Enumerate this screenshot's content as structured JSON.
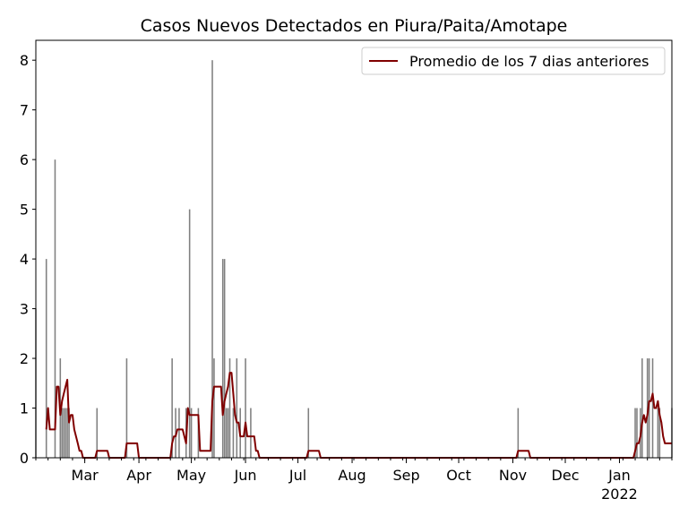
{
  "chart_data": {
    "type": "bar",
    "title": "Casos Nuevos Detectados en Piura/Paita/Amotape",
    "xlabel": "",
    "ylabel": "",
    "x_range": [
      "2021-02-01",
      "2022-01-31"
    ],
    "ylim": [
      0,
      8.4
    ],
    "yticks": [
      0,
      1,
      2,
      3,
      4,
      5,
      6,
      7,
      8
    ],
    "xticks": [
      {
        "date": "2021-03-01",
        "label": "Mar"
      },
      {
        "date": "2021-04-01",
        "label": "Apr"
      },
      {
        "date": "2021-05-01",
        "label": "May"
      },
      {
        "date": "2021-06-01",
        "label": "Jun"
      },
      {
        "date": "2021-07-01",
        "label": "Jul"
      },
      {
        "date": "2021-08-01",
        "label": "Aug"
      },
      {
        "date": "2021-09-01",
        "label": "Sep"
      },
      {
        "date": "2021-10-01",
        "label": "Oct"
      },
      {
        "date": "2021-11-01",
        "label": "Nov"
      },
      {
        "date": "2021-12-01",
        "label": "Dec"
      },
      {
        "date": "2022-01-01",
        "label": "Jan",
        "sublabel": "2022"
      }
    ],
    "grid": false,
    "legend_position": "top-right",
    "colors": {
      "bars": "#808080",
      "line": "#800000"
    },
    "bars": {
      "name": "",
      "points": [
        [
          "2021-02-01",
          3
        ],
        [
          "2021-02-07",
          4
        ],
        [
          "2021-02-12",
          6
        ],
        [
          "2021-02-15",
          2
        ],
        [
          "2021-02-16",
          1
        ],
        [
          "2021-02-17",
          1
        ],
        [
          "2021-02-18",
          1
        ],
        [
          "2021-02-19",
          1
        ],
        [
          "2021-02-20",
          1
        ],
        [
          "2021-03-08",
          1
        ],
        [
          "2021-03-25",
          2
        ],
        [
          "2021-04-20",
          2
        ],
        [
          "2021-04-22",
          1
        ],
        [
          "2021-04-24",
          1
        ],
        [
          "2021-04-28",
          1
        ],
        [
          "2021-04-30",
          5
        ],
        [
          "2021-05-01",
          1
        ],
        [
          "2021-05-05",
          1
        ],
        [
          "2021-05-13",
          8
        ],
        [
          "2021-05-14",
          2
        ],
        [
          "2021-05-19",
          4
        ],
        [
          "2021-05-20",
          4
        ],
        [
          "2021-05-21",
          1
        ],
        [
          "2021-05-22",
          1
        ],
        [
          "2021-05-23",
          2
        ],
        [
          "2021-05-25",
          1
        ],
        [
          "2021-05-27",
          2
        ],
        [
          "2021-05-29",
          1
        ],
        [
          "2021-06-01",
          2
        ],
        [
          "2021-06-04",
          1
        ],
        [
          "2021-07-07",
          1
        ],
        [
          "2021-11-04",
          1
        ],
        [
          "2022-01-10",
          1
        ],
        [
          "2022-01-11",
          1
        ],
        [
          "2022-01-13",
          1
        ],
        [
          "2022-01-14",
          2
        ],
        [
          "2022-01-17",
          2
        ],
        [
          "2022-01-18",
          2
        ],
        [
          "2022-01-20",
          2
        ],
        [
          "2022-01-23",
          1
        ],
        [
          "2022-01-24",
          1
        ],
        [
          "2022-01-31",
          1
        ]
      ]
    },
    "series": [
      {
        "name": "Promedio de los 7 dias anteriores",
        "points": [
          [
            "2021-02-07",
            0.57
          ],
          [
            "2021-02-08",
            1.0
          ],
          [
            "2021-02-09",
            0.57
          ],
          [
            "2021-02-10",
            0.57
          ],
          [
            "2021-02-11",
            0.57
          ],
          [
            "2021-02-12",
            0.57
          ],
          [
            "2021-02-13",
            1.43
          ],
          [
            "2021-02-14",
            1.43
          ],
          [
            "2021-02-15",
            0.86
          ],
          [
            "2021-02-16",
            1.14
          ],
          [
            "2021-02-17",
            1.29
          ],
          [
            "2021-02-18",
            1.43
          ],
          [
            "2021-02-19",
            1.57
          ],
          [
            "2021-02-20",
            0.71
          ],
          [
            "2021-02-21",
            0.86
          ],
          [
            "2021-02-22",
            0.86
          ],
          [
            "2021-02-23",
            0.57
          ],
          [
            "2021-02-24",
            0.43
          ],
          [
            "2021-02-25",
            0.29
          ],
          [
            "2021-02-26",
            0.14
          ],
          [
            "2021-02-27",
            0.14
          ],
          [
            "2021-02-28",
            0.0
          ],
          [
            "2021-03-01",
            0.0
          ],
          [
            "2021-03-07",
            0.0
          ],
          [
            "2021-03-08",
            0.14
          ],
          [
            "2021-03-14",
            0.14
          ],
          [
            "2021-03-15",
            0.0
          ],
          [
            "2021-03-24",
            0.0
          ],
          [
            "2021-03-25",
            0.29
          ],
          [
            "2021-03-31",
            0.29
          ],
          [
            "2021-04-01",
            0.0
          ],
          [
            "2021-04-19",
            0.0
          ],
          [
            "2021-04-20",
            0.29
          ],
          [
            "2021-04-21",
            0.43
          ],
          [
            "2021-04-22",
            0.43
          ],
          [
            "2021-04-23",
            0.57
          ],
          [
            "2021-04-26",
            0.57
          ],
          [
            "2021-04-27",
            0.43
          ],
          [
            "2021-04-28",
            0.29
          ],
          [
            "2021-04-29",
            1.0
          ],
          [
            "2021-04-30",
            0.86
          ],
          [
            "2021-05-05",
            0.86
          ],
          [
            "2021-05-06",
            0.14
          ],
          [
            "2021-05-11",
            0.14
          ],
          [
            "2021-05-12",
            0.14
          ],
          [
            "2021-05-13",
            1.14
          ],
          [
            "2021-05-14",
            1.43
          ],
          [
            "2021-05-18",
            1.43
          ],
          [
            "2021-05-19",
            0.86
          ],
          [
            "2021-05-20",
            1.14
          ],
          [
            "2021-05-21",
            1.29
          ],
          [
            "2021-05-22",
            1.43
          ],
          [
            "2021-05-23",
            1.71
          ],
          [
            "2021-05-24",
            1.71
          ],
          [
            "2021-05-25",
            1.29
          ],
          [
            "2021-05-26",
            0.86
          ],
          [
            "2021-05-27",
            0.71
          ],
          [
            "2021-05-28",
            0.71
          ],
          [
            "2021-05-29",
            0.43
          ],
          [
            "2021-05-30",
            0.43
          ],
          [
            "2021-05-31",
            0.43
          ],
          [
            "2021-06-01",
            0.71
          ],
          [
            "2021-06-02",
            0.43
          ],
          [
            "2021-06-06",
            0.43
          ],
          [
            "2021-06-07",
            0.14
          ],
          [
            "2021-06-08",
            0.14
          ],
          [
            "2021-06-09",
            0.0
          ],
          [
            "2021-07-06",
            0.0
          ],
          [
            "2021-07-07",
            0.14
          ],
          [
            "2021-07-13",
            0.14
          ],
          [
            "2021-07-14",
            0.0
          ],
          [
            "2021-11-03",
            0.0
          ],
          [
            "2021-11-04",
            0.14
          ],
          [
            "2021-11-10",
            0.14
          ],
          [
            "2021-11-11",
            0.0
          ],
          [
            "2022-01-09",
            0.0
          ],
          [
            "2022-01-10",
            0.14
          ],
          [
            "2022-01-11",
            0.29
          ],
          [
            "2022-01-12",
            0.29
          ],
          [
            "2022-01-13",
            0.43
          ],
          [
            "2022-01-14",
            0.71
          ],
          [
            "2022-01-15",
            0.86
          ],
          [
            "2022-01-16",
            0.71
          ],
          [
            "2022-01-17",
            0.86
          ],
          [
            "2022-01-18",
            1.14
          ],
          [
            "2022-01-19",
            1.14
          ],
          [
            "2022-01-20",
            1.29
          ],
          [
            "2022-01-21",
            1.0
          ],
          [
            "2022-01-22",
            1.0
          ],
          [
            "2022-01-23",
            1.14
          ],
          [
            "2022-01-24",
            0.86
          ],
          [
            "2022-01-25",
            0.71
          ],
          [
            "2022-01-26",
            0.43
          ],
          [
            "2022-01-27",
            0.29
          ],
          [
            "2022-01-28",
            0.29
          ],
          [
            "2022-01-29",
            0.29
          ],
          [
            "2022-01-31",
            0.29
          ]
        ]
      }
    ]
  }
}
